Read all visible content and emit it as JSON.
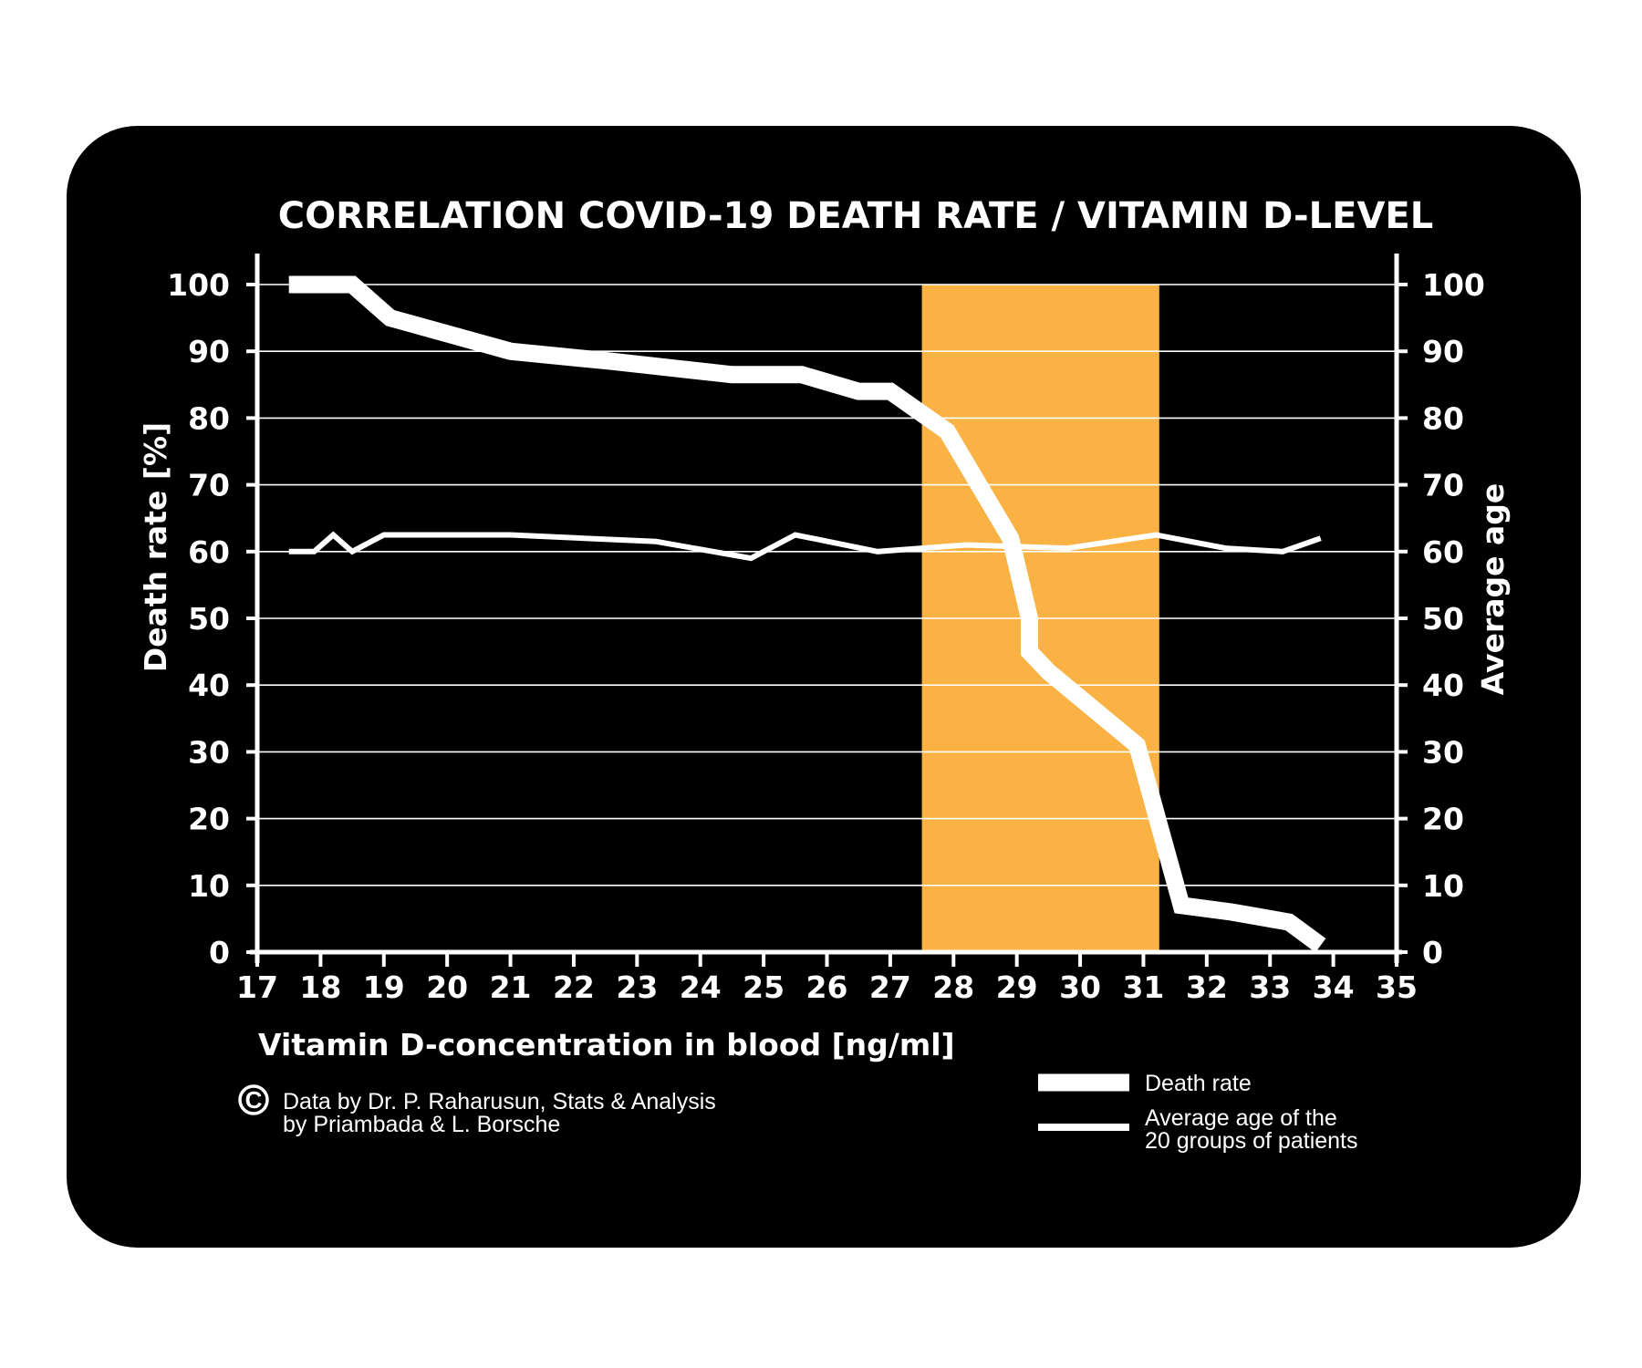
{
  "chart_data": {
    "type": "line",
    "title": "CORRELATION COVID-19 DEATH RATE / VITAMIN D-LEVEL",
    "xlabel": "Vitamin D-concentration in blood [ng/ml]",
    "ylabel_left": "Death rate [%]",
    "ylabel_right": "Average age",
    "xlim": [
      17,
      35
    ],
    "ylim": [
      0,
      100
    ],
    "x_ticks": [
      "17",
      "18",
      "19",
      "20",
      "21",
      "22",
      "23",
      "24",
      "25",
      "26",
      "27",
      "28",
      "29",
      "30",
      "31",
      "32",
      "33",
      "34",
      "35"
    ],
    "y_ticks": [
      "0",
      "10",
      "20",
      "30",
      "40",
      "50",
      "60",
      "70",
      "80",
      "90",
      "100"
    ],
    "grid": true,
    "highlight_band": {
      "x_from": 27.5,
      "x_to": 31.25,
      "color": "#f9b243"
    },
    "series": [
      {
        "name": "Death rate",
        "axis": "left",
        "style": "thick",
        "x": [
          17.5,
          18.5,
          19.1,
          21.0,
          22.6,
          24.5,
          25.6,
          26.5,
          27.0,
          27.9,
          28.9,
          29.2,
          29.2,
          29.5,
          30.9,
          31.6,
          32.4,
          33.3,
          33.8
        ],
        "y": [
          100,
          100,
          95,
          90,
          88.5,
          86.5,
          86.5,
          84,
          84,
          78,
          62,
          50,
          45,
          42,
          31,
          7,
          6,
          4.5,
          1
        ]
      },
      {
        "name": "Average age of the 20 groups of patients",
        "axis": "right",
        "style": "thin",
        "x": [
          17.5,
          17.9,
          18.2,
          18.5,
          19.0,
          21.0,
          23.3,
          24.8,
          25.5,
          26.8,
          28.2,
          29.8,
          31.2,
          32.3,
          33.2,
          33.8
        ],
        "y": [
          60,
          60,
          62.5,
          60,
          62.5,
          62.5,
          61.5,
          59,
          62.5,
          60,
          61,
          60.5,
          62.5,
          60.5,
          60,
          62
        ]
      }
    ]
  },
  "legend": {
    "death_rate": "Death rate",
    "average_age_line1": "Average age of the",
    "average_age_line2": "20 groups of patients"
  },
  "credits": {
    "symbol": "C",
    "line1": "Data by Dr. P. Raharusun, Stats & Analysis",
    "line2": "by Priambada & L. Borsche"
  }
}
